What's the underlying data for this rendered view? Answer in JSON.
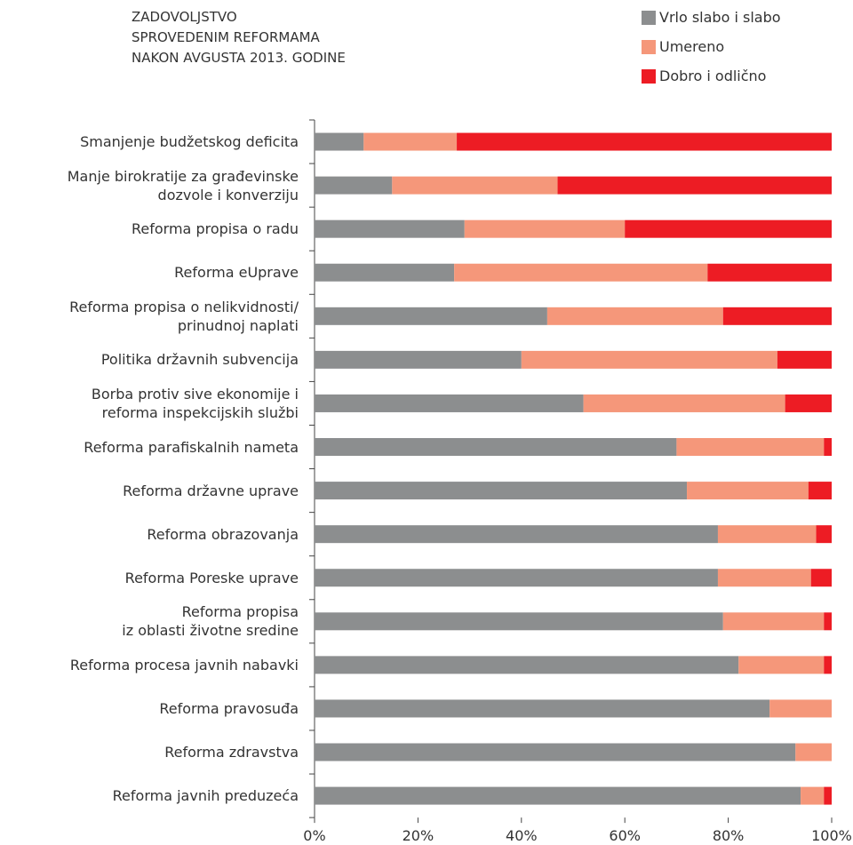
{
  "chart_data": {
    "type": "stacked_bar_horizontal",
    "title": "ZADOVOLJSTVO\nSPROVEDENIM REFORMAMA\nNAKON AVGUSTA 2013. GODINE",
    "categories": [
      "Smanjenje budžetskog deficita",
      "Manje birokratije za građevinske\ndozvole i konverziju",
      "Reforma propisa o radu",
      "Reforma eUprave",
      "Reforma propisa o nelikvidnosti/\nprinudnoj naplati",
      "Politika državnih subvencija",
      "Borba protiv sive ekonomije i\nreforma inspekcijskih službi",
      "Reforma parafiskalnih nameta",
      "Reforma državne uprave",
      "Reforma obrazovanja",
      "Reforma Poreske uprave",
      "Reforma propisa\niz oblasti životne sredine",
      "Reforma procesa javnih nabavki",
      "Reforma pravosuđa",
      "Reforma zdravstva",
      "Reforma javnih preduzeća"
    ],
    "series": [
      {
        "name": "Vrlo slabo i slabo",
        "color": "#8c8e8f",
        "values": [
          9.5,
          15,
          29,
          27,
          45,
          40,
          52,
          70,
          72,
          78,
          78,
          79,
          82,
          88,
          93,
          94
        ]
      },
      {
        "name": "Umereno",
        "color": "#f5977a",
        "values": [
          18,
          32,
          31,
          49,
          34,
          49.5,
          39,
          28.5,
          23.5,
          19,
          18,
          19.5,
          16.5,
          12,
          7,
          4.5
        ]
      },
      {
        "name": "Dobro i odlično",
        "color": "#ed1c24",
        "values": [
          72.5,
          53,
          40,
          24,
          21,
          10.5,
          9,
          1.5,
          4.5,
          3,
          4,
          1.5,
          1.5,
          0,
          0,
          1.5
        ]
      }
    ],
    "xlim": [
      0,
      100
    ],
    "xticks": [
      {
        "value": 0,
        "label": "0%"
      },
      {
        "value": 20,
        "label": "20%"
      },
      {
        "value": 40,
        "label": "40%"
      },
      {
        "value": 60,
        "label": "60%"
      },
      {
        "value": 80,
        "label": "80%"
      },
      {
        "value": 100,
        "label": "100%"
      }
    ],
    "legend": "top-right"
  }
}
